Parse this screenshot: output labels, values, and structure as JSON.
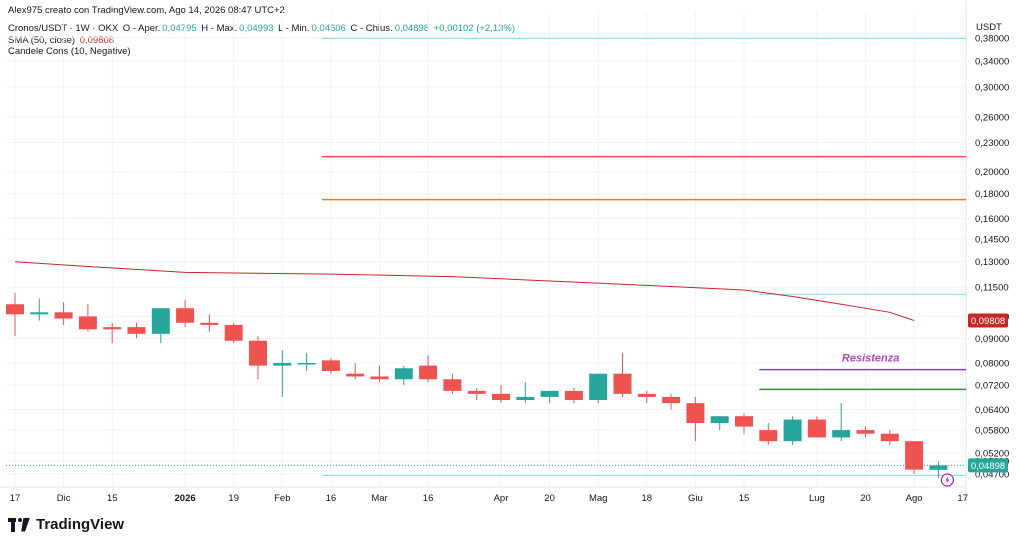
{
  "header": {
    "credit": "Alex975 creato con TradingView.com, Ago 14, 2026 08:47 UTC+2",
    "symbol": "Cronos/USDT · 1W · OKX",
    "o_label": "O - Aper.",
    "o_val": "0,04795",
    "h_label": "H - Max.",
    "h_val": "0,04993",
    "l_label": "L - Min.",
    "l_val": "0,04606",
    "c_label": "C - Chius.",
    "c_val": "0,04898",
    "change": "+0,00102 (+2,13%)",
    "sma_label": "SMA (50, close)",
    "sma_val": "0,09808",
    "pattern_label": "Candele Cons (10, Negative)"
  },
  "brand": {
    "name": "TradingView"
  },
  "colors": {
    "up": "#26a69a",
    "down": "#ef5350",
    "sma": "#c62828",
    "grid": "#f0f3fa"
  },
  "chart_data": {
    "type": "candlestick",
    "y_axis_label": "USDT",
    "y_scale": "log",
    "y_ticks": [
      0.047,
      0.05,
      0.052,
      0.058,
      0.064,
      0.072,
      0.08,
      0.09,
      0.1,
      0.115,
      0.13,
      0.145,
      0.16,
      0.18,
      0.2,
      0.23,
      0.26,
      0.3,
      0.34,
      0.38
    ],
    "y_tick_labels": [
      "0,04700",
      "0,05000",
      "0,05200",
      "0,05800",
      "0,06400",
      "0,07200",
      "0,08000",
      "0,09000",
      "0,10000",
      "0,11500",
      "0,13000",
      "0,14500",
      "0,16000",
      "0,18000",
      "0,20000",
      "0,23000",
      "0,26000",
      "0,30000",
      "0,34000",
      "0,38000"
    ],
    "x_ticks": [
      {
        "i": 0,
        "label": "17"
      },
      {
        "i": 2,
        "label": "Dic"
      },
      {
        "i": 4,
        "label": "15"
      },
      {
        "i": 7,
        "label": "2026",
        "bold": true
      },
      {
        "i": 9,
        "label": "19"
      },
      {
        "i": 11,
        "label": "Feb"
      },
      {
        "i": 13,
        "label": "16"
      },
      {
        "i": 15,
        "label": "Mar"
      },
      {
        "i": 17,
        "label": "16"
      },
      {
        "i": 20,
        "label": "Apr"
      },
      {
        "i": 22,
        "label": "20"
      },
      {
        "i": 24,
        "label": "Mag"
      },
      {
        "i": 26,
        "label": "18"
      },
      {
        "i": 28,
        "label": "Giu"
      },
      {
        "i": 30,
        "label": "15"
      },
      {
        "i": 33,
        "label": "Lug"
      },
      {
        "i": 35,
        "label": "20"
      },
      {
        "i": 37,
        "label": "Ago"
      },
      {
        "i": 39,
        "label": "17"
      }
    ],
    "candles": [
      {
        "o": 0.106,
        "h": 0.112,
        "l": 0.091,
        "c": 0.101
      },
      {
        "o": 0.101,
        "h": 0.109,
        "l": 0.098,
        "c": 0.102
      },
      {
        "o": 0.102,
        "h": 0.107,
        "l": 0.096,
        "c": 0.099
      },
      {
        "o": 0.1,
        "h": 0.106,
        "l": 0.093,
        "c": 0.094
      },
      {
        "o": 0.095,
        "h": 0.097,
        "l": 0.088,
        "c": 0.094
      },
      {
        "o": 0.095,
        "h": 0.097,
        "l": 0.09,
        "c": 0.092
      },
      {
        "o": 0.092,
        "h": 0.104,
        "l": 0.088,
        "c": 0.104
      },
      {
        "o": 0.104,
        "h": 0.108,
        "l": 0.095,
        "c": 0.097
      },
      {
        "o": 0.097,
        "h": 0.101,
        "l": 0.093,
        "c": 0.096
      },
      {
        "o": 0.096,
        "h": 0.097,
        "l": 0.088,
        "c": 0.089
      },
      {
        "o": 0.089,
        "h": 0.091,
        "l": 0.074,
        "c": 0.079
      },
      {
        "o": 0.079,
        "h": 0.085,
        "l": 0.068,
        "c": 0.08
      },
      {
        "o": 0.08,
        "h": 0.084,
        "l": 0.077,
        "c": 0.08
      },
      {
        "o": 0.081,
        "h": 0.082,
        "l": 0.076,
        "c": 0.077
      },
      {
        "o": 0.076,
        "h": 0.08,
        "l": 0.074,
        "c": 0.075
      },
      {
        "o": 0.075,
        "h": 0.079,
        "l": 0.073,
        "c": 0.074
      },
      {
        "o": 0.074,
        "h": 0.079,
        "l": 0.072,
        "c": 0.078
      },
      {
        "o": 0.079,
        "h": 0.083,
        "l": 0.073,
        "c": 0.074
      },
      {
        "o": 0.074,
        "h": 0.076,
        "l": 0.069,
        "c": 0.07
      },
      {
        "o": 0.07,
        "h": 0.071,
        "l": 0.067,
        "c": 0.069
      },
      {
        "o": 0.069,
        "h": 0.072,
        "l": 0.066,
        "c": 0.067
      },
      {
        "o": 0.067,
        "h": 0.073,
        "l": 0.066,
        "c": 0.068
      },
      {
        "o": 0.068,
        "h": 0.07,
        "l": 0.066,
        "c": 0.07
      },
      {
        "o": 0.07,
        "h": 0.071,
        "l": 0.066,
        "c": 0.067
      },
      {
        "o": 0.067,
        "h": 0.076,
        "l": 0.066,
        "c": 0.076
      },
      {
        "o": 0.076,
        "h": 0.084,
        "l": 0.068,
        "c": 0.069
      },
      {
        "o": 0.069,
        "h": 0.07,
        "l": 0.066,
        "c": 0.068
      },
      {
        "o": 0.068,
        "h": 0.069,
        "l": 0.064,
        "c": 0.066
      },
      {
        "o": 0.066,
        "h": 0.068,
        "l": 0.055,
        "c": 0.06
      },
      {
        "o": 0.06,
        "h": 0.062,
        "l": 0.058,
        "c": 0.062
      },
      {
        "o": 0.062,
        "h": 0.063,
        "l": 0.057,
        "c": 0.059
      },
      {
        "o": 0.058,
        "h": 0.06,
        "l": 0.054,
        "c": 0.055
      },
      {
        "o": 0.055,
        "h": 0.062,
        "l": 0.054,
        "c": 0.061
      },
      {
        "o": 0.061,
        "h": 0.062,
        "l": 0.056,
        "c": 0.056
      },
      {
        "o": 0.056,
        "h": 0.066,
        "l": 0.055,
        "c": 0.058
      },
      {
        "o": 0.058,
        "h": 0.059,
        "l": 0.056,
        "c": 0.057
      },
      {
        "o": 0.057,
        "h": 0.058,
        "l": 0.054,
        "c": 0.055
      },
      {
        "o": 0.055,
        "h": 0.055,
        "l": 0.047,
        "c": 0.048
      },
      {
        "o": 0.04795,
        "h": 0.04993,
        "l": 0.04606,
        "c": 0.04898
      }
    ],
    "sma": [
      {
        "i": 0,
        "v": 0.13
      },
      {
        "i": 3,
        "v": 0.127
      },
      {
        "i": 7,
        "v": 0.1235
      },
      {
        "i": 13,
        "v": 0.1225
      },
      {
        "i": 18,
        "v": 0.121
      },
      {
        "i": 22,
        "v": 0.1185
      },
      {
        "i": 26,
        "v": 0.116
      },
      {
        "i": 30,
        "v": 0.1135
      },
      {
        "i": 32,
        "v": 0.11
      },
      {
        "i": 34,
        "v": 0.106
      },
      {
        "i": 36,
        "v": 0.102
      },
      {
        "i": 37,
        "v": 0.09808
      }
    ],
    "levels": [
      {
        "name": "top-line",
        "price": 0.379,
        "from": 13,
        "to": 40,
        "color": "#80deea",
        "width": 1
      },
      {
        "name": "red-line",
        "price": 0.215,
        "from": 13,
        "to": 40,
        "color": "#ef5350",
        "width": 1.5
      },
      {
        "name": "orange-line",
        "price": 0.175,
        "from": 13,
        "to": 40,
        "color": "#f57c00",
        "width": 1.5
      },
      {
        "name": "upper-box-line",
        "price": 0.1112,
        "from": 31,
        "to": 40,
        "color": "#80deea",
        "width": 1
      },
      {
        "name": "resistance-line",
        "price": 0.0775,
        "from": 31,
        "to": 40,
        "color": "#7e3ff2",
        "width": 1.5,
        "label": "Resistenza",
        "label_color": "#ab47bc"
      },
      {
        "name": "green-line",
        "price": 0.0705,
        "from": 31,
        "to": 40,
        "color": "#388e3c",
        "width": 1.5
      },
      {
        "name": "lower-box-line",
        "price": 0.0467,
        "from": 13,
        "to": 40,
        "color": "#80deea",
        "width": 1
      }
    ],
    "price_labels": [
      {
        "name": "sma-price-label",
        "value": 0.09808,
        "text": "0,09808",
        "color": "#c62828"
      },
      {
        "name": "last-price-label",
        "value": 0.04898,
        "text": "0,04898",
        "color": "#26a69a"
      }
    ]
  }
}
